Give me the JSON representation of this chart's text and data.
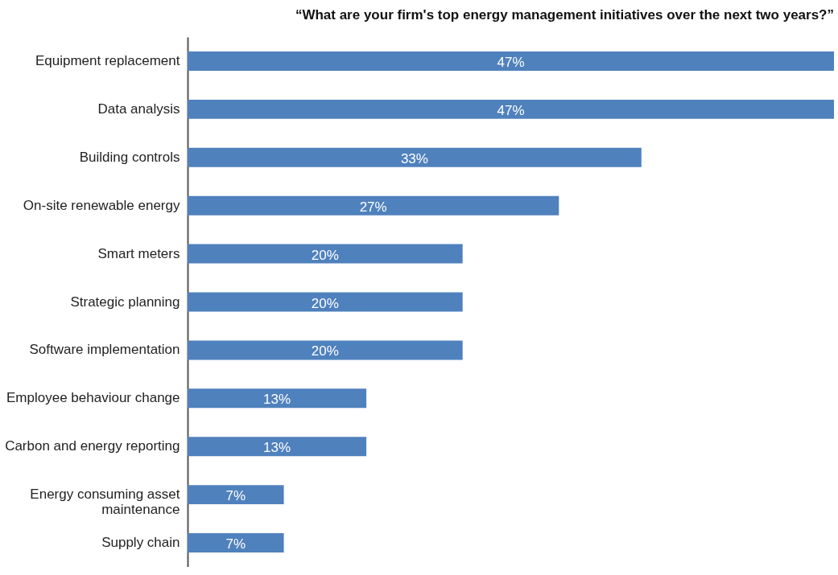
{
  "chart_data": {
    "type": "bar",
    "orientation": "horizontal",
    "title": "“What are your firm's top energy management initiatives over the next two years?”",
    "categories": [
      "Equipment replacement",
      "Data analysis",
      "Building controls",
      "On-site renewable energy",
      "Smart meters",
      "Strategic planning",
      "Software implementation",
      "Employee behaviour change",
      "Carbon and energy reporting",
      "Energy consuming asset maintenance",
      "Supply chain"
    ],
    "values": [
      47,
      47,
      33,
      27,
      20,
      20,
      20,
      13,
      13,
      7,
      7
    ],
    "value_labels": [
      "47%",
      "47%",
      "33%",
      "27%",
      "20%",
      "20%",
      "20%",
      "13%",
      "13%",
      "7%",
      "7%"
    ],
    "color": "#4f81bd",
    "grid": false,
    "tick_labels": "y"
  }
}
